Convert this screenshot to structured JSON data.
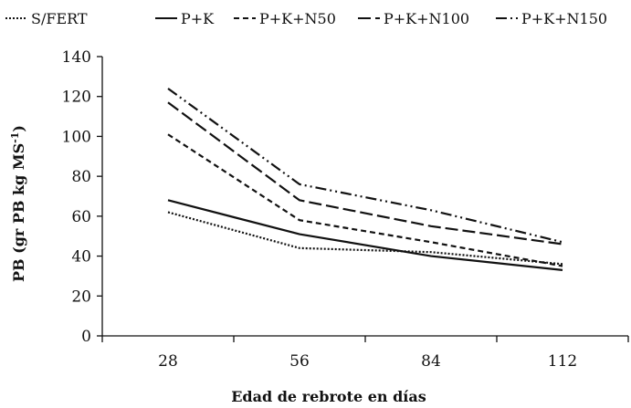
{
  "chart_data": {
    "type": "line",
    "x": [
      28,
      56,
      84,
      112
    ],
    "xlabel": "Edad de rebrote en días",
    "ylabel": "PB (gr PB kg MS",
    "ylabel_sup": "-1",
    "ylabel_close": ")",
    "ylim": [
      0,
      140
    ],
    "yticks": [
      0,
      20,
      40,
      60,
      80,
      100,
      120,
      140
    ],
    "xticks": [
      "28",
      "56",
      "84",
      "112"
    ],
    "grid": false,
    "legend_position": "top",
    "series": [
      {
        "name": "S/FERT",
        "dash": "2,2",
        "values": [
          62,
          44,
          42,
          36
        ]
      },
      {
        "name": "P+K",
        "dash": "",
        "values": [
          68,
          51,
          40,
          33
        ]
      },
      {
        "name": "P+K+N50",
        "dash": "6,4",
        "values": [
          101,
          58,
          47,
          35
        ]
      },
      {
        "name": "P+K+N100",
        "dash": "14,5",
        "values": [
          117,
          68,
          55,
          46
        ]
      },
      {
        "name": "P+K+N150",
        "dash": "12,4,2,4,2,4",
        "values": [
          124,
          76,
          63,
          47
        ]
      }
    ]
  }
}
